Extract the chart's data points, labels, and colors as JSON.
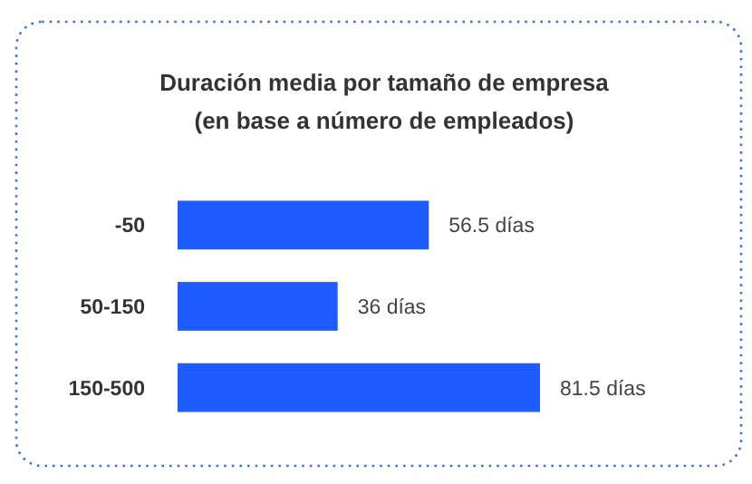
{
  "chart_data": {
    "type": "bar",
    "orientation": "horizontal",
    "title": "Duración media por tamaño de empresa\n(en base a número de empleados)",
    "categories": [
      "-50",
      "50-150",
      "150-500"
    ],
    "values": [
      56.5,
      36,
      81.5
    ],
    "value_labels": [
      "56.5 días",
      "36 días",
      "81.5 días"
    ],
    "color": "#1f5cff"
  }
}
